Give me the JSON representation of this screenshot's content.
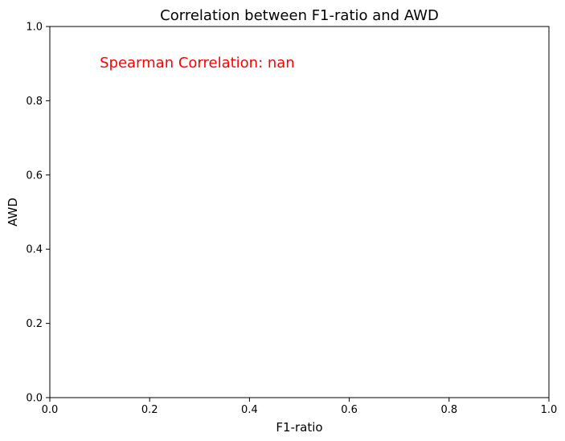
{
  "chart_data": {
    "type": "scatter",
    "title": "Correlation between F1-ratio and AWD",
    "xlabel": "F1-ratio",
    "ylabel": "AWD",
    "xlim": [
      0.0,
      1.0
    ],
    "ylim": [
      0.0,
      1.0
    ],
    "xticks": [
      "0.0",
      "0.2",
      "0.4",
      "0.6",
      "0.8",
      "1.0"
    ],
    "yticks": [
      "0.0",
      "0.2",
      "0.4",
      "0.6",
      "0.8",
      "1.0"
    ],
    "grid": false,
    "series": [
      {
        "x": [],
        "y": []
      }
    ],
    "annotations": [
      {
        "text": "Spearman Correlation: nan",
        "x": 0.1,
        "y": 0.9,
        "color": "#ff0000"
      }
    ]
  }
}
